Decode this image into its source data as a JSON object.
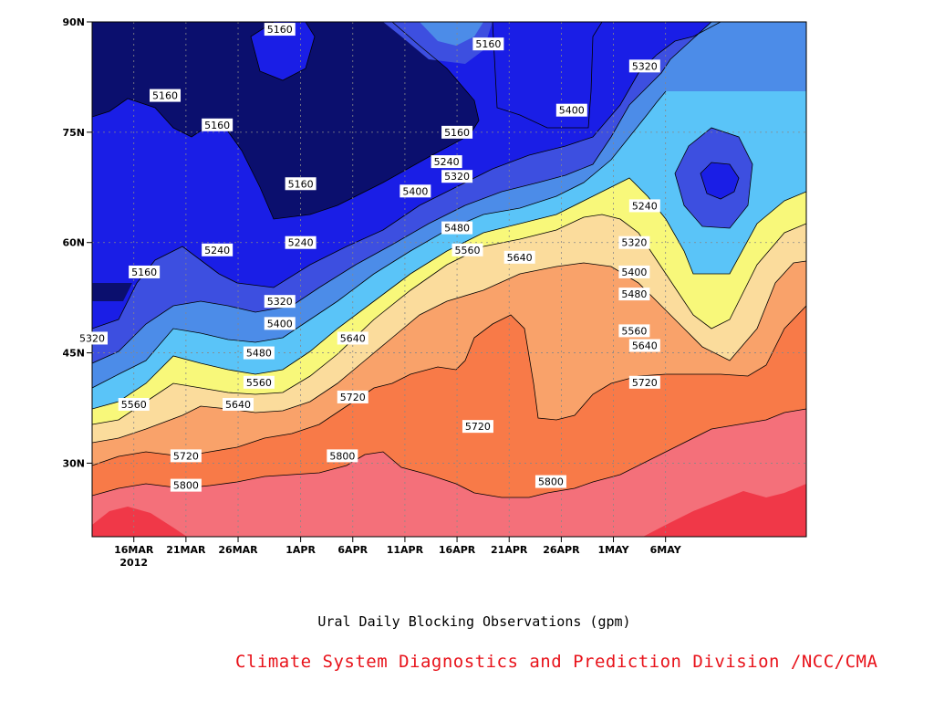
{
  "chart_data": {
    "type": "contour",
    "title": "",
    "xlabel": "Ural Daily Blocking Observations (gpm)",
    "ylabel": "",
    "x_ticks": [
      "16MAR",
      "21MAR",
      "26MAR",
      "1APR",
      "6APR",
      "11APR",
      "16APR",
      "21APR",
      "26APR",
      "1MAY",
      "6MAY"
    ],
    "x_year_label": "2012",
    "y_ticks": [
      "30N",
      "45N",
      "60N",
      "75N",
      "90N"
    ],
    "grid": true,
    "contour_levels": [
      5160,
      5240,
      5320,
      5400,
      5480,
      5560,
      5640,
      5720,
      5800
    ],
    "contour_labels": [
      {
        "value": "5160",
        "date": "19MAR",
        "lat": 80.0
      },
      {
        "value": "5160",
        "date": "24MAR",
        "lat": 76.0
      },
      {
        "value": "5160",
        "date": "30MAR",
        "lat": 89.0
      },
      {
        "value": "5160",
        "date": "17MAR",
        "lat": 56.0
      },
      {
        "value": "5160",
        "date": "1APR",
        "lat": 68.0
      },
      {
        "value": "5160",
        "date": "16APR",
        "lat": 75.0
      },
      {
        "value": "5160",
        "date": "19APR",
        "lat": 87.0
      },
      {
        "value": "5240",
        "date": "24MAR",
        "lat": 59.0
      },
      {
        "value": "5240",
        "date": "1APR",
        "lat": 60.0
      },
      {
        "value": "5240",
        "date": "15APR",
        "lat": 71.0
      },
      {
        "value": "5240",
        "date": "4MAY",
        "lat": 65.0
      },
      {
        "value": "5320",
        "date": "12MAR",
        "lat": 47.0
      },
      {
        "value": "5320",
        "date": "30MAR",
        "lat": 52.0
      },
      {
        "value": "5320",
        "date": "16APR",
        "lat": 69.0
      },
      {
        "value": "5320",
        "date": "4MAY",
        "lat": 84.0
      },
      {
        "value": "5320",
        "date": "3MAY",
        "lat": 60.0
      },
      {
        "value": "5400",
        "date": "30MAR",
        "lat": 49.0
      },
      {
        "value": "5400",
        "date": "12APR",
        "lat": 67.0
      },
      {
        "value": "5400",
        "date": "27APR",
        "lat": 78.0
      },
      {
        "value": "5400",
        "date": "3MAY",
        "lat": 56.0
      },
      {
        "value": "5480",
        "date": "28MAR",
        "lat": 45.0
      },
      {
        "value": "5480",
        "date": "16APR",
        "lat": 62.0
      },
      {
        "value": "5480",
        "date": "3MAY",
        "lat": 53.0
      },
      {
        "value": "5560",
        "date": "16MAR",
        "lat": 38.0
      },
      {
        "value": "5560",
        "date": "28MAR",
        "lat": 41.0
      },
      {
        "value": "5560",
        "date": "17APR",
        "lat": 59.0
      },
      {
        "value": "5560",
        "date": "3MAY",
        "lat": 48.0
      },
      {
        "value": "5640",
        "date": "26MAR",
        "lat": 38.0
      },
      {
        "value": "5640",
        "date": "6APR",
        "lat": 47.0
      },
      {
        "value": "5640",
        "date": "22APR",
        "lat": 58.0
      },
      {
        "value": "5640",
        "date": "4MAY",
        "lat": 46.0
      },
      {
        "value": "5720",
        "date": "21MAR",
        "lat": 31.0
      },
      {
        "value": "5720",
        "date": "6APR",
        "lat": 39.0
      },
      {
        "value": "5720",
        "date": "18APR",
        "lat": 35.0
      },
      {
        "value": "5720",
        "date": "4MAY",
        "lat": 41.0
      },
      {
        "value": "5800",
        "date": "21MAR",
        "lat": 27.0
      },
      {
        "value": "5800",
        "date": "5APR",
        "lat": 31.0
      },
      {
        "value": "5800",
        "date": "25APR",
        "lat": 27.5
      }
    ]
  },
  "footer": {
    "xlabel": "Ural Daily Blocking Observations (gpm)",
    "credit": "Climate System Diagnostics and Prediction Division /NCC/CMA",
    "credit_color": "#e8121a"
  },
  "colors": {
    "lt5160": "#0b0f6e",
    "c5160": "#1a1ee6",
    "c5240": "#3d4fe0",
    "c5320": "#4c8ce8",
    "c5400": "#5ac4f8",
    "c5480": "#f8f87a",
    "c5560": "#fbdc9c",
    "c5640": "#f9a26a",
    "c5720": "#f87a48",
    "c5800": "#f4707a",
    "gt5800": "#f03848"
  }
}
